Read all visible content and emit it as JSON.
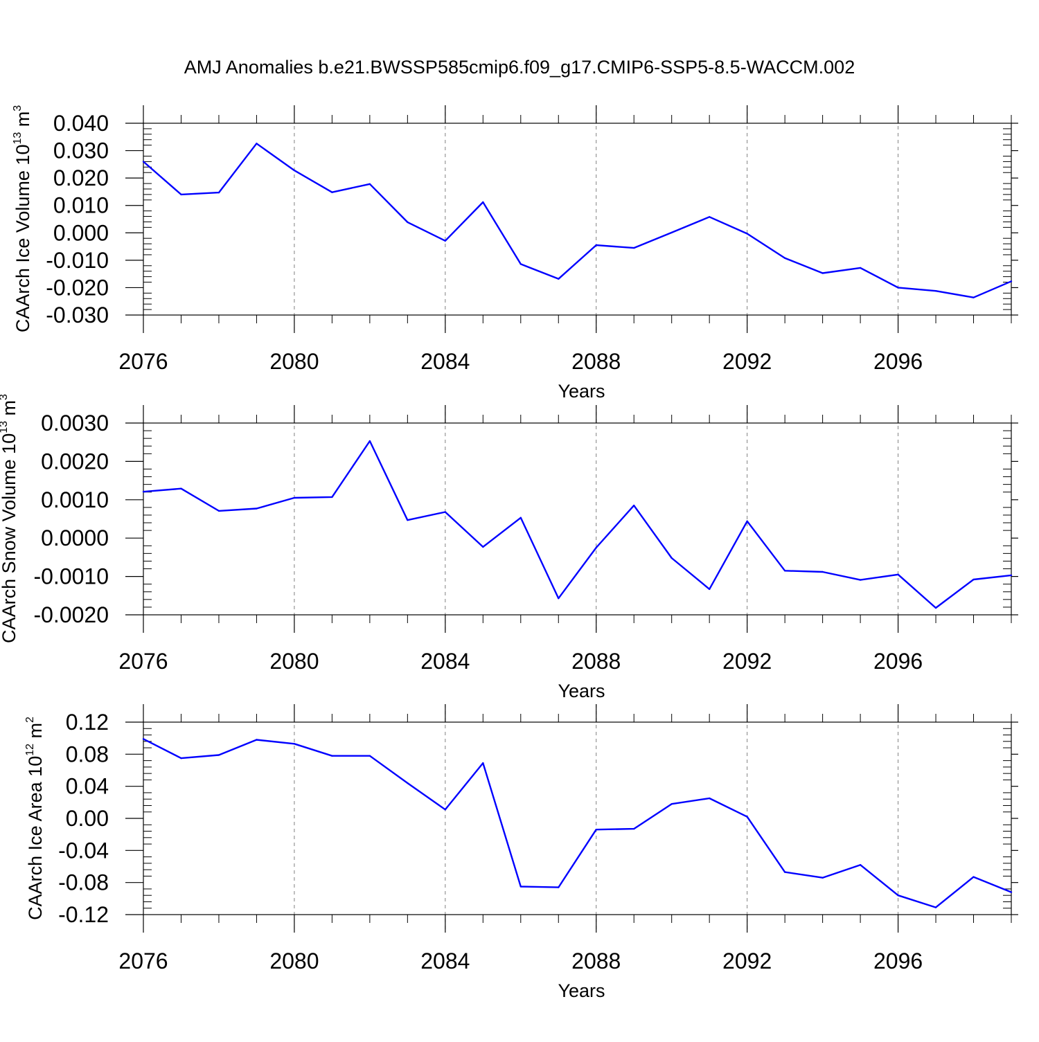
{
  "colors": {
    "line": "#0000ff",
    "frame": "#000000",
    "grid": "#808080",
    "background": "#ffffff"
  },
  "chart_data": [
    {
      "type": "line",
      "title": "AMJ Anomalies b.e21.BWSSP585cmip6.f09_g17.CMIP6-SSP5-8.5-WACCM.002",
      "xlabel": "Years",
      "ylabel": {
        "text": "CAArch Ice Volume 10",
        "exponent": "13",
        "unit": " m",
        "unit_exponent": "3"
      },
      "xlim": [
        2076,
        2099
      ],
      "ylim": [
        -0.03,
        0.04
      ],
      "x_ticks": [
        2076,
        2080,
        2084,
        2088,
        2092,
        2096
      ],
      "x_tick_labels": [
        "2076",
        "2080",
        "2084",
        "2088",
        "2092",
        "2096"
      ],
      "y_ticks": [
        -0.03,
        -0.02,
        -0.01,
        0.0,
        0.01,
        0.02,
        0.03,
        0.04
      ],
      "y_tick_labels": [
        "-0.030",
        "-0.020",
        "-0.010",
        "0.000",
        "0.010",
        "0.020",
        "0.030",
        "0.040"
      ],
      "grid": "vertical dashed at major x ticks",
      "x": [
        2076,
        2077,
        2078,
        2079,
        2080,
        2081,
        2082,
        2083,
        2084,
        2085,
        2086,
        2087,
        2088,
        2089,
        2090,
        2091,
        2092,
        2093,
        2094,
        2095,
        2096,
        2097,
        2098,
        2099
      ],
      "y": [
        0.026,
        0.014,
        0.0147,
        0.0326,
        0.0228,
        0.0148,
        0.0178,
        0.0039,
        -0.0029,
        0.0112,
        -0.0114,
        -0.0168,
        -0.0045,
        -0.0055,
        0.0001,
        0.0058,
        -0.0003,
        -0.0092,
        -0.0147,
        -0.0128,
        -0.02,
        -0.0212,
        -0.0236,
        -0.0177
      ]
    },
    {
      "type": "line",
      "xlabel": "Years",
      "ylabel": {
        "text": "CAArch Snow Volume 10",
        "exponent": "13",
        "unit": " m",
        "unit_exponent": "3"
      },
      "xlim": [
        2076,
        2099
      ],
      "ylim": [
        -0.002,
        0.003
      ],
      "x_ticks": [
        2076,
        2080,
        2084,
        2088,
        2092,
        2096
      ],
      "x_tick_labels": [
        "2076",
        "2080",
        "2084",
        "2088",
        "2092",
        "2096"
      ],
      "y_ticks": [
        -0.002,
        -0.001,
        0.0,
        0.001,
        0.002,
        0.003
      ],
      "y_tick_labels": [
        "-0.0020",
        "-0.0010",
        "0.0000",
        "0.0010",
        "0.0020",
        "0.0030"
      ],
      "grid": "vertical dashed at major x ticks",
      "x": [
        2076,
        2077,
        2078,
        2079,
        2080,
        2081,
        2082,
        2083,
        2084,
        2085,
        2086,
        2087,
        2088,
        2089,
        2090,
        2091,
        2092,
        2093,
        2094,
        2095,
        2096,
        2097,
        2098,
        2099
      ],
      "y": [
        0.00121,
        0.00129,
        0.00071,
        0.00077,
        0.00105,
        0.00107,
        0.00253,
        0.00047,
        0.00068,
        -0.00023,
        0.00053,
        -0.00157,
        -0.00025,
        0.00085,
        -0.00052,
        -0.00133,
        0.00044,
        -0.00085,
        -0.00088,
        -0.00109,
        -0.00095,
        -0.00182,
        -0.00108,
        -0.00097
      ]
    },
    {
      "type": "line",
      "xlabel": "Years",
      "ylabel": {
        "text": "CAArch Ice Area 10",
        "exponent": "12",
        "unit": " m",
        "unit_exponent": "2"
      },
      "xlim": [
        2076,
        2099
      ],
      "ylim": [
        -0.12,
        0.12
      ],
      "x_ticks": [
        2076,
        2080,
        2084,
        2088,
        2092,
        2096
      ],
      "x_tick_labels": [
        "2076",
        "2080",
        "2084",
        "2088",
        "2092",
        "2096"
      ],
      "y_ticks": [
        -0.12,
        -0.08,
        -0.04,
        0.0,
        0.04,
        0.08,
        0.12
      ],
      "y_tick_labels": [
        "-0.12",
        "-0.08",
        "-0.04",
        "0.00",
        "0.04",
        "0.08",
        "0.12"
      ],
      "grid": "vertical dashed at major x ticks",
      "x": [
        2076,
        2077,
        2078,
        2079,
        2080,
        2081,
        2082,
        2083,
        2084,
        2085,
        2086,
        2087,
        2088,
        2089,
        2090,
        2091,
        2092,
        2093,
        2094,
        2095,
        2096,
        2097,
        2098,
        2099
      ],
      "y": [
        0.099,
        0.075,
        0.079,
        0.098,
        0.093,
        0.078,
        0.078,
        0.044,
        0.011,
        0.069,
        -0.085,
        -0.086,
        -0.014,
        -0.013,
        0.018,
        0.025,
        0.002,
        -0.067,
        -0.074,
        -0.058,
        -0.096,
        -0.111,
        -0.073,
        -0.092
      ]
    }
  ]
}
